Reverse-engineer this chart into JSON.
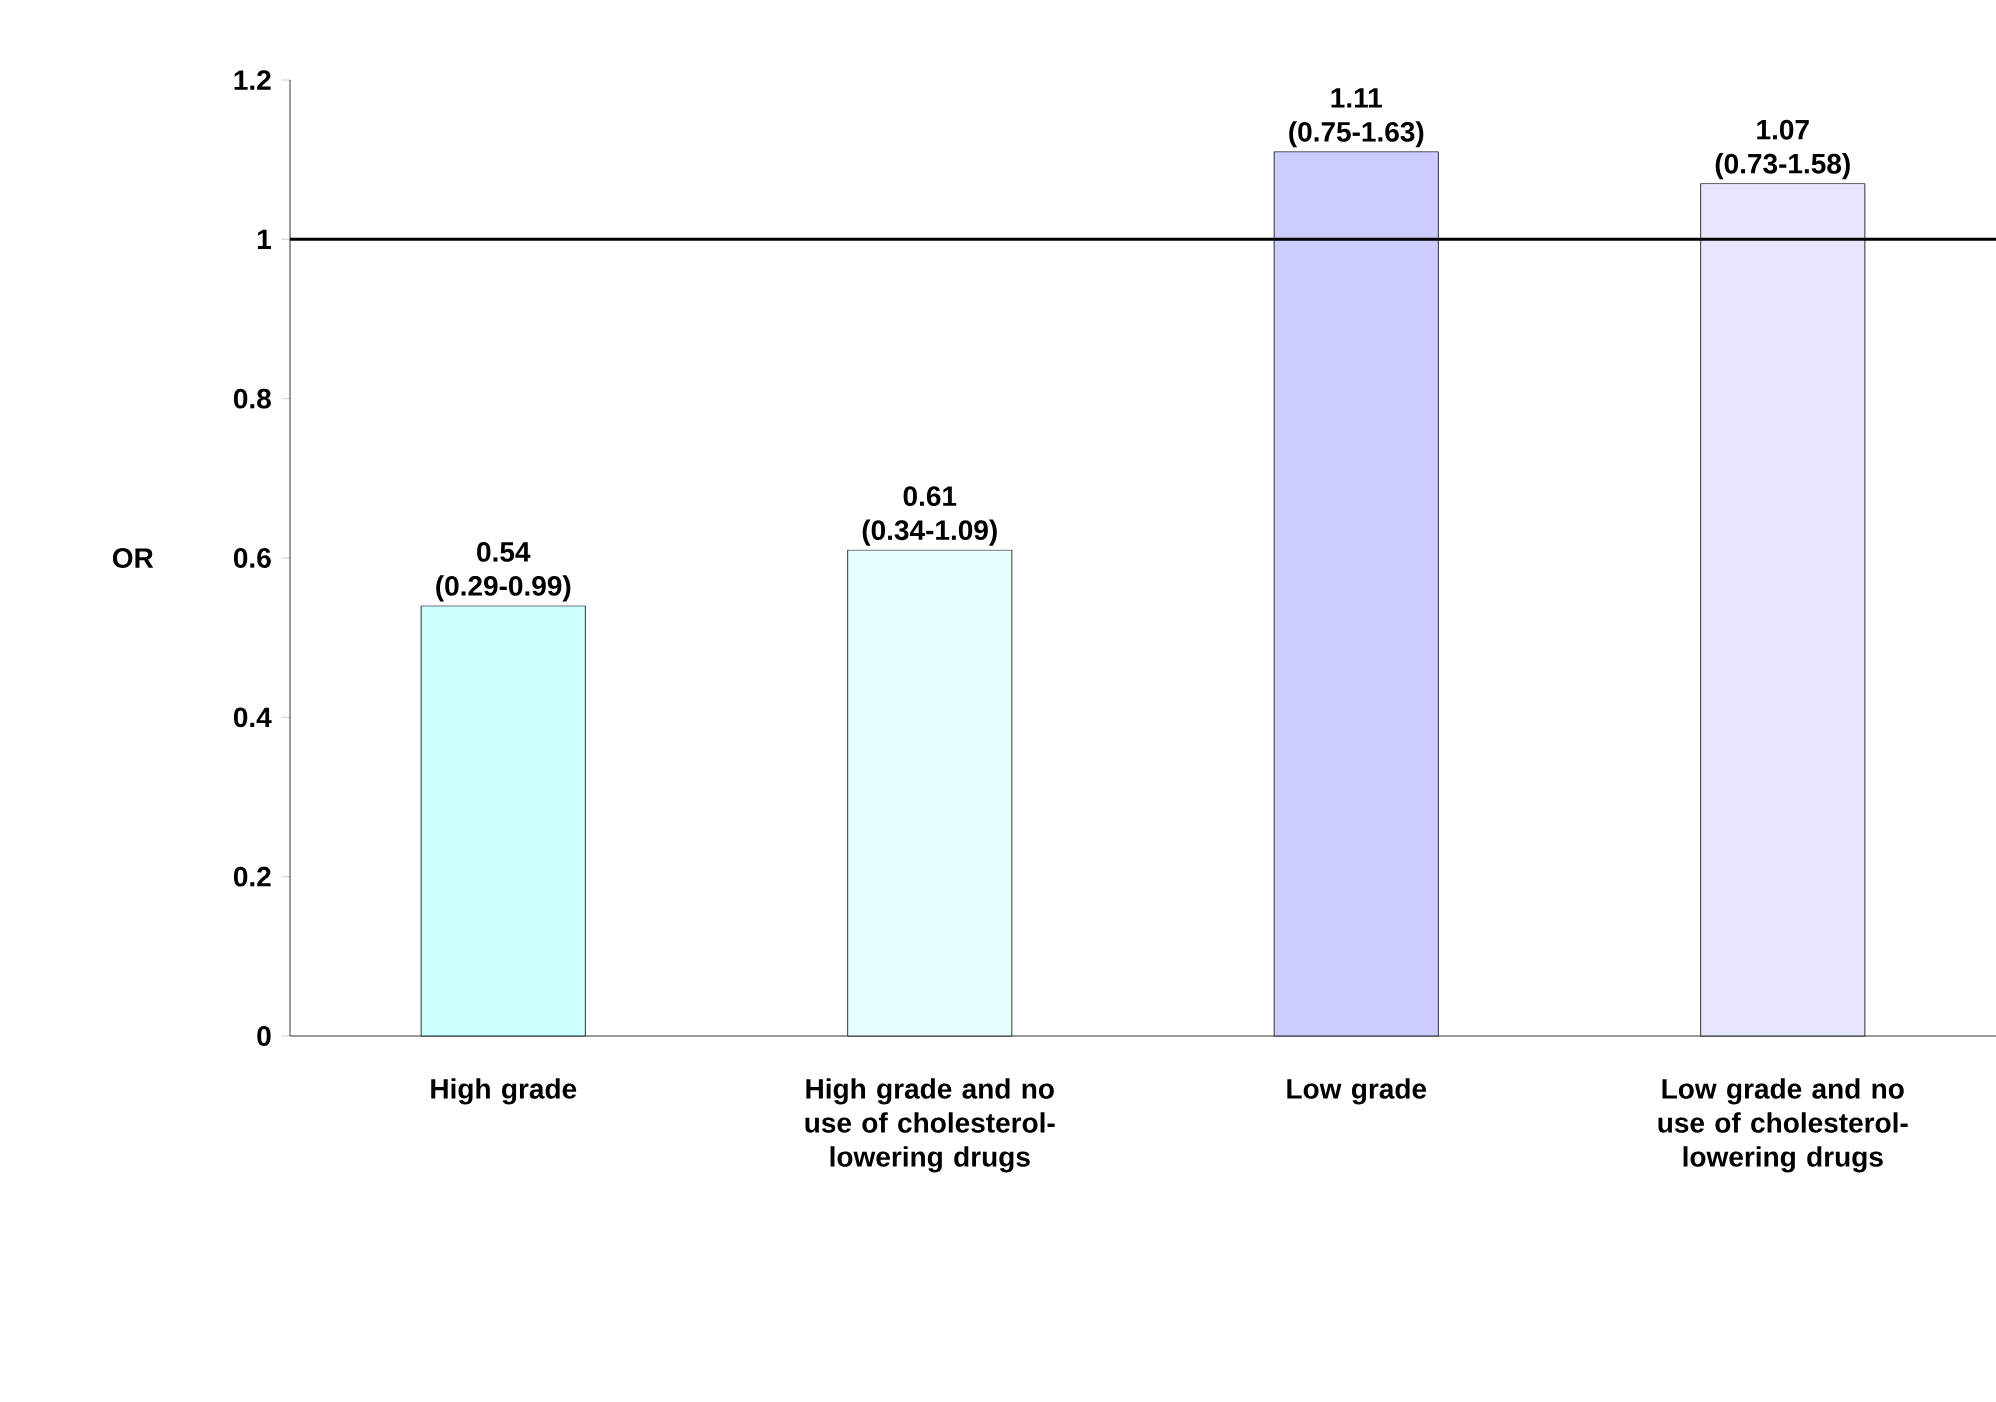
{
  "chart_data": {
    "type": "bar",
    "ylabel": "OR",
    "categories": [
      "High grade",
      "High grade and no use of cholesterol-lowering drugs",
      "Low grade",
      "Low grade and no use of cholesterol-lowering drugs"
    ],
    "values": [
      0.54,
      0.61,
      1.11,
      1.07
    ],
    "value_labels": [
      "0.54 (0.29-0.99)",
      "0.61 (0.34-1.09)",
      "1.11 (0.75-1.63)",
      "1.07 (0.73-1.58)"
    ],
    "colors": [
      "#ccffff",
      "#e6ffff",
      "#ccccff",
      "#e6e6ff"
    ],
    "ylim": [
      0,
      1.2
    ],
    "yticks": [
      0,
      0.2,
      0.4,
      0.6,
      0.8,
      1,
      1.2
    ],
    "ref_lines": [
      {
        "axis": "y",
        "value": 1,
        "color": "#000000"
      }
    ],
    "grid": false
  }
}
